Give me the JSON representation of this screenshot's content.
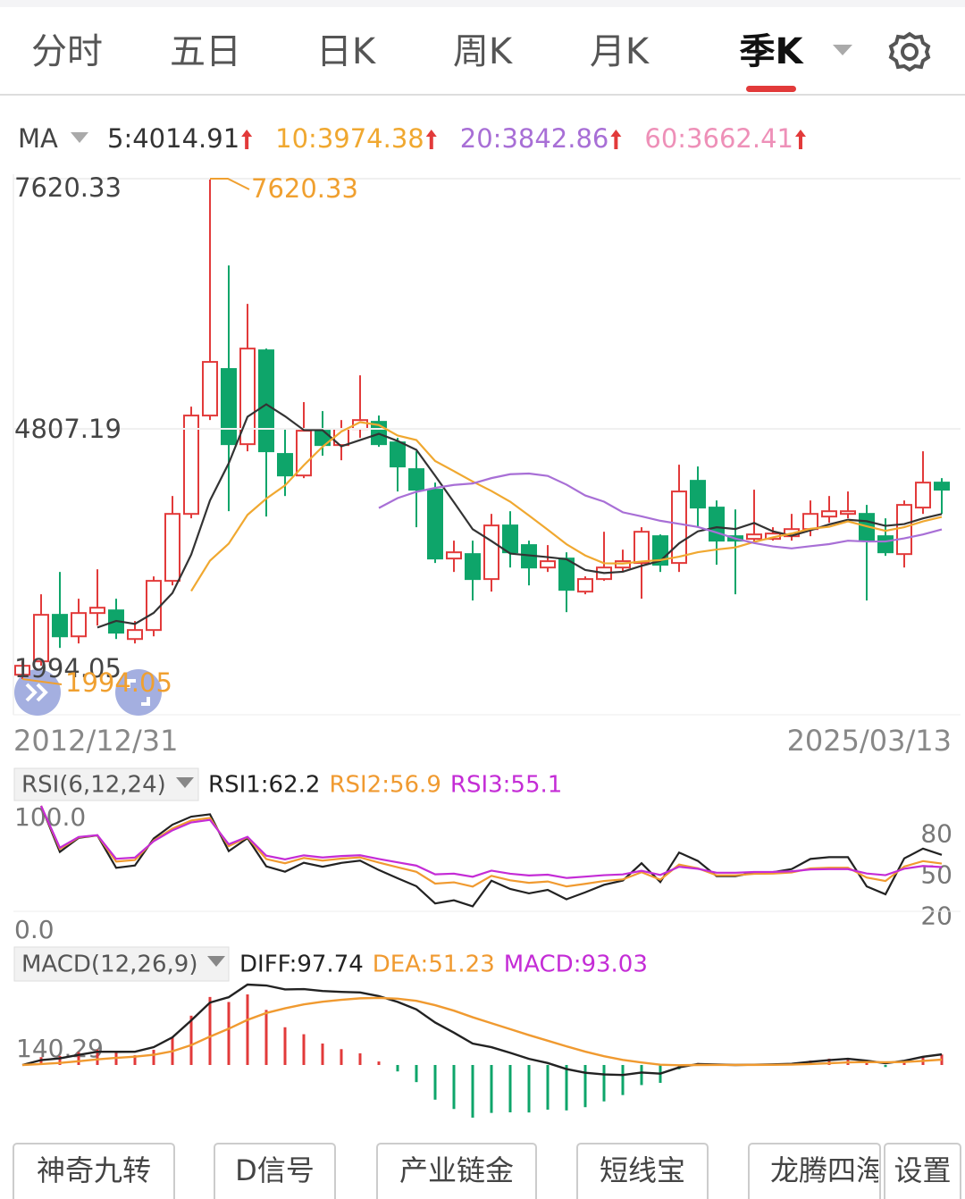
{
  "tabs": [
    "分时",
    "五日",
    "日K",
    "周K",
    "月K",
    "季K"
  ],
  "active_tab": 5,
  "ma_header": {
    "label": "MA",
    "items": [
      {
        "text": "5:4014.91",
        "color": "#333333"
      },
      {
        "text": "10:3974.38",
        "color": "#f0a830"
      },
      {
        "text": "20:3842.86",
        "color": "#a86fd6"
      },
      {
        "text": "60:3662.41",
        "color": "#ee90b8"
      }
    ]
  },
  "chart_data": {
    "type": "candlestick",
    "open": [
      2042,
      2193,
      2716,
      2474,
      2736,
      2766,
      2444,
      2545,
      3098,
      3851,
      4957,
      5480,
      4635,
      5690,
      4525,
      4283,
      4786,
      4625,
      4806,
      4886,
      4655,
      4354,
      4123,
      3349,
      3399,
      3118,
      3721,
      3500,
      3248,
      3349,
      2977,
      3118,
      3248,
      3299,
      3600,
      3299,
      4223,
      3922,
      3600,
      3570,
      3570,
      3600,
      3680,
      3821,
      3851,
      3851,
      3600,
      3399,
      3922,
      4203
    ],
    "high": [
      2193,
      2947,
      3198,
      2897,
      3228,
      2897,
      2646,
      3148,
      4052,
      5057,
      7620.33,
      6645,
      6213,
      5710,
      4806,
      5108,
      5007,
      4906,
      5409,
      4957,
      4706,
      4555,
      4203,
      3550,
      3550,
      3851,
      3881,
      3550,
      3500,
      3419,
      3148,
      3650,
      3449,
      3701,
      3620,
      4404,
      4384,
      4002,
      3901,
      4123,
      3701,
      3851,
      4002,
      4052,
      4103,
      3952,
      3801,
      4002,
      4555,
      4253
    ],
    "low": [
      1994.05,
      2143,
      2344,
      2394,
      2595,
      2444,
      2394,
      2474,
      3047,
      3801,
      4906,
      3881,
      4555,
      3821,
      4052,
      4253,
      4505,
      4454,
      4706,
      4605,
      4103,
      3701,
      3299,
      3198,
      2877,
      2977,
      3248,
      3047,
      3198,
      2746,
      2947,
      3098,
      3198,
      2897,
      3198,
      3198,
      3701,
      3279,
      2947,
      3520,
      3550,
      3550,
      3600,
      3751,
      3801,
      2877,
      3379,
      3248,
      3851,
      3851
    ],
    "close": [
      2143,
      2716,
      2474,
      2736,
      2796,
      2515,
      2545,
      3098,
      3851,
      4957,
      5560,
      4635,
      5710,
      4555,
      4283,
      4786,
      4625,
      4806,
      4906,
      4635,
      4384,
      4123,
      3349,
      3419,
      3118,
      3721,
      3419,
      3248,
      3319,
      2997,
      3118,
      3248,
      3319,
      3650,
      3279,
      4103,
      3922,
      3550,
      3550,
      3620,
      3630,
      3680,
      3851,
      3881,
      3881,
      3550,
      3419,
      3952,
      4203,
      4123
    ],
    "ylim": [
      1994.05,
      7620.33
    ],
    "yticks": [
      1994.05,
      4807.19,
      7620.33
    ],
    "x_start": "2012/12/31",
    "x_end": "2025/03/13",
    "ma_periods": [
      5,
      10,
      20,
      60
    ],
    "up_color": "#e23a3a",
    "down_color": "#0ea56a"
  },
  "rsi": {
    "label": "RSI(6,12,24)",
    "periods": [
      6,
      12,
      24
    ],
    "items": [
      {
        "text": "RSI1:62.2",
        "color": "#222222"
      },
      {
        "text": "RSI2:56.9",
        "color": "#f09a30"
      },
      {
        "text": "RSI3:55.1",
        "color": "#c42cd6"
      }
    ],
    "ylim": [
      0,
      100
    ],
    "yticks": [
      {
        "value": 0,
        "label": "0.0"
      },
      {
        "value": 100,
        "label": "100.0"
      }
    ],
    "y2ticks": [
      20,
      50,
      80
    ]
  },
  "macd": {
    "label": "MACD(12,26,9)",
    "periods": [
      12,
      26,
      9
    ],
    "items": [
      {
        "text": "DIFF:97.74",
        "color": "#222222"
      },
      {
        "text": "DEA:51.23",
        "color": "#f09a30"
      },
      {
        "text": "MACD:93.03",
        "color": "#c42cd6"
      }
    ],
    "axis_label": "140.29"
  },
  "buttons": [
    "神奇九转",
    "D信号",
    "产业链金",
    "短线宝",
    "龙腾四海",
    "设置"
  ]
}
